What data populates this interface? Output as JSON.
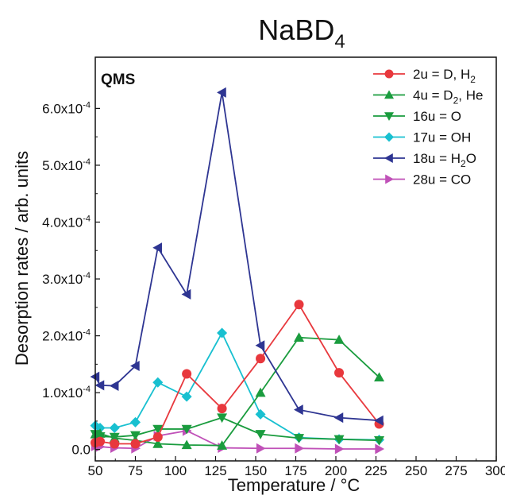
{
  "chart_data": {
    "type": "line",
    "title": "NaBD",
    "title_sub": "4",
    "xlabel": "Temperature / °C",
    "ylabel": "Desorption rates / arb. units",
    "xlim": [
      50,
      300
    ],
    "ylim": [
      -0.2,
      6.9
    ],
    "y_scale_exponent": -4,
    "xticks": [
      50,
      75,
      100,
      125,
      150,
      175,
      200,
      225,
      250,
      275,
      300
    ],
    "yticks": [
      {
        "value": 0.0,
        "mantissa": "0.0",
        "exp": ""
      },
      {
        "value": 1.0,
        "mantissa": "1.0x10",
        "exp": "-4"
      },
      {
        "value": 2.0,
        "mantissa": "2.0x10",
        "exp": "-4"
      },
      {
        "value": 3.0,
        "mantissa": "3.0x10",
        "exp": "-4"
      },
      {
        "value": 4.0,
        "mantissa": "4.0x10",
        "exp": "-4"
      },
      {
        "value": 5.0,
        "mantissa": "5.0x10",
        "exp": "-4"
      },
      {
        "value": 6.0,
        "mantissa": "6.0x10",
        "exp": "-4"
      }
    ],
    "annotation": "QMS",
    "legend_position": "top-right",
    "grid": false,
    "series": [
      {
        "name": "2u = D, H",
        "name_sub": "2",
        "color": "#e8383d",
        "marker": "circle",
        "x": [
          50,
          53,
          62,
          75,
          89,
          107,
          129,
          153,
          177,
          202,
          227
        ],
        "y": [
          0.12,
          0.14,
          0.1,
          0.1,
          0.22,
          1.33,
          0.72,
          1.6,
          2.55,
          1.35,
          0.45
        ]
      },
      {
        "name": "4u = D, He",
        "name_sub": "2",
        "name_pre": "4u = D",
        "name_post": ", He",
        "color": "#1a9c3e",
        "marker": "triangle-up",
        "x": [
          50,
          53,
          62,
          75,
          89,
          107,
          129,
          153,
          177,
          202,
          227
        ],
        "y": [
          0.27,
          0.28,
          0.2,
          0.16,
          0.1,
          0.08,
          0.07,
          1.0,
          1.97,
          1.93,
          1.27
        ]
      },
      {
        "name": "16u = O",
        "color": "#1a9c3e",
        "marker": "triangle-down",
        "x": [
          50,
          53,
          62,
          75,
          89,
          107,
          129,
          153,
          177,
          202,
          227
        ],
        "y": [
          0.27,
          0.23,
          0.22,
          0.25,
          0.36,
          0.36,
          0.56,
          0.27,
          0.2,
          0.18,
          0.16
        ]
      },
      {
        "name": "17u = OH",
        "color": "#18c0d0",
        "marker": "diamond",
        "x": [
          50,
          53,
          62,
          75,
          89,
          107,
          129,
          153,
          177,
          202,
          227
        ],
        "y": [
          0.42,
          0.38,
          0.38,
          0.48,
          1.18,
          0.93,
          2.05,
          0.62,
          0.21,
          0.18,
          0.17
        ]
      },
      {
        "name": "18u = H O",
        "name_sub": "2",
        "name_pre": "18u = H",
        "name_post": "O",
        "color": "#2e3592",
        "marker": "triangle-left",
        "x": [
          50,
          53,
          62,
          75,
          89,
          107,
          129,
          153,
          177,
          202,
          227
        ],
        "y": [
          1.28,
          1.13,
          1.12,
          1.47,
          3.55,
          2.73,
          6.28,
          1.83,
          0.7,
          0.56,
          0.51
        ]
      },
      {
        "name": "28u = CO",
        "color": "#c051b8",
        "marker": "triangle-right",
        "x": [
          50,
          53,
          62,
          75,
          89,
          107,
          129,
          153,
          177,
          202,
          227
        ],
        "y": [
          0.06,
          0.05,
          0.03,
          0.02,
          0.24,
          0.33,
          0.03,
          0.02,
          0.02,
          0.01,
          0.01
        ]
      }
    ]
  }
}
